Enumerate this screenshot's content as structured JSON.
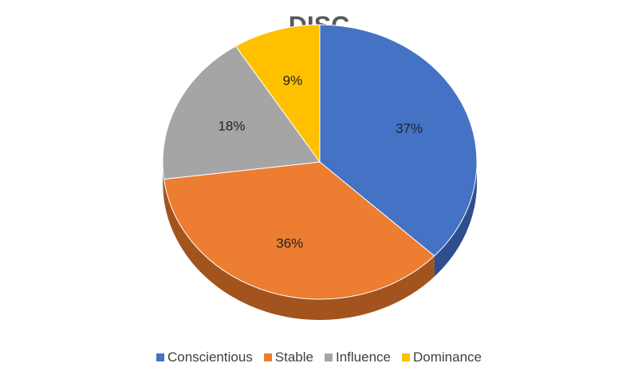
{
  "chart_data": {
    "type": "pie",
    "title": "DISC",
    "legend_position": "bottom",
    "categories": [
      "Conscientious",
      "Stable",
      "Influence",
      "Dominance"
    ],
    "values": [
      37,
      36,
      18,
      9
    ],
    "labels": [
      "37%",
      "36%",
      "18%",
      "9%"
    ],
    "colors": [
      "#4472C4",
      "#ED7D31",
      "#A5A5A5",
      "#FFC000"
    ],
    "side_colors": [
      "#2E4F8C",
      "#A3541E",
      "#7A7A7A",
      "#B38700"
    ]
  }
}
